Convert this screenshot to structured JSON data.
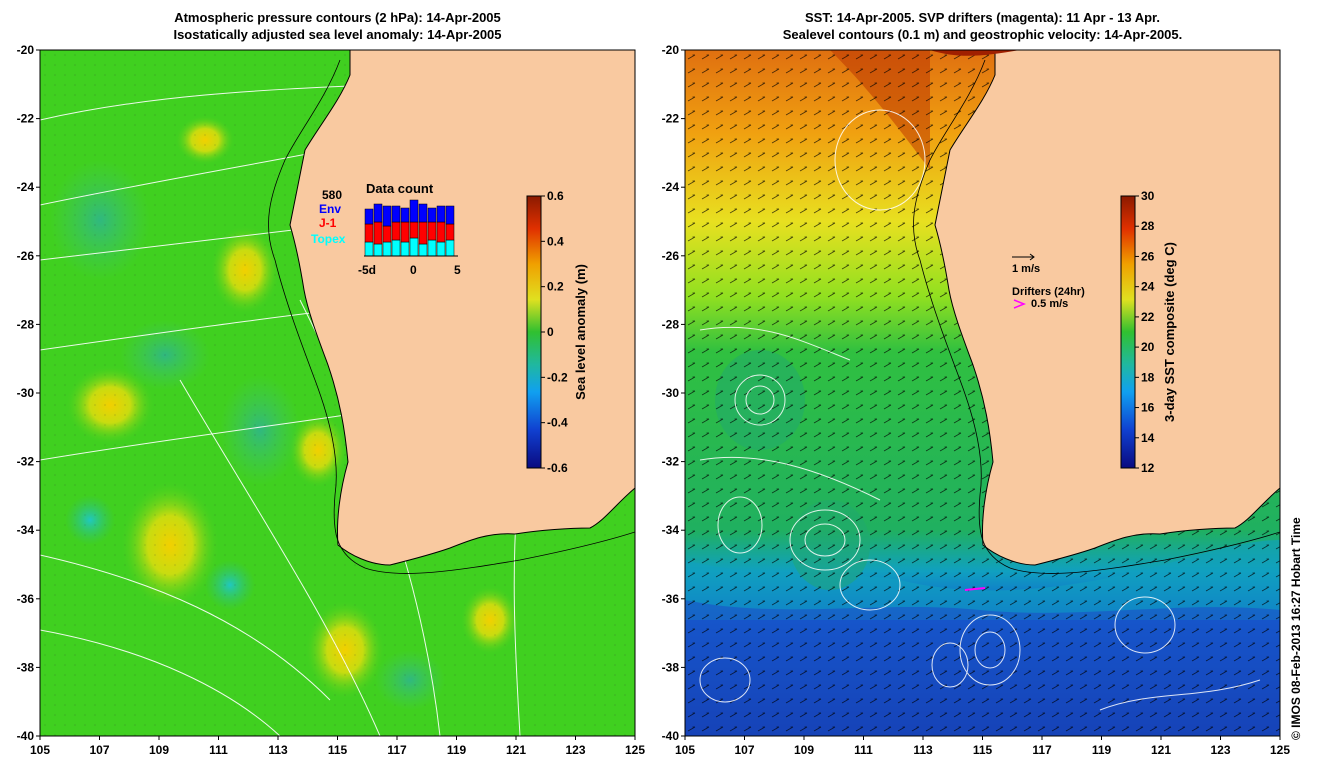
{
  "left_panel": {
    "title_line1": "Atmospheric pressure contours (2 hPa): 14-Apr-2005",
    "title_line2": "Isostatically adjusted sea level anomaly: 14-Apr-2005",
    "colorbar": {
      "label": "Sea level anomaly (m)",
      "ticks": [
        "0.6",
        "0.4",
        "0.2",
        "0",
        "-0.2",
        "-0.4",
        "-0.6"
      ],
      "range": [
        -0.6,
        0.6
      ]
    },
    "data_count": {
      "title": "Data count",
      "max_label": "580",
      "legend": [
        {
          "label": "Env",
          "color": "#0000ff"
        },
        {
          "label": "J-1",
          "color": "#ff0000"
        },
        {
          "label": "Topex",
          "color": "#00ffff"
        }
      ],
      "x_ticks": [
        "-5d",
        "0",
        "5"
      ]
    }
  },
  "right_panel": {
    "title_line1": "SST: 14-Apr-2005. SVP drifters (magenta): 11 Apr - 13 Apr.",
    "title_line2": "Sealevel contours (0.1 m) and geostrophic velocity: 14-Apr-2005.",
    "colorbar": {
      "label": "3-day SST composite (deg C)",
      "ticks": [
        "30",
        "28",
        "26",
        "24",
        "22",
        "20",
        "18",
        "16",
        "14",
        "12"
      ],
      "range": [
        12,
        30
      ]
    },
    "velocity_legend": "1 m/s",
    "drifter_legend_title": "Drifters (24hr)",
    "drifter_legend_value": "0.5 m/s",
    "drifter_color": "#ff00ff"
  },
  "axes": {
    "lat_ticks": [
      "-20",
      "-22",
      "-24",
      "-26",
      "-28",
      "-30",
      "-32",
      "-34",
      "-36",
      "-38",
      "-40"
    ],
    "lon_ticks": [
      "105",
      "107",
      "109",
      "111",
      "113",
      "115",
      "117",
      "119",
      "121",
      "123",
      "125"
    ],
    "lat_range": [
      -40,
      -20
    ],
    "lon_range": [
      105,
      125
    ]
  },
  "colors": {
    "land": "#f9c9a0",
    "coast": "#000000"
  },
  "credit": "© IMOS 08-Feb-2013 16:27 Hobart Time"
}
